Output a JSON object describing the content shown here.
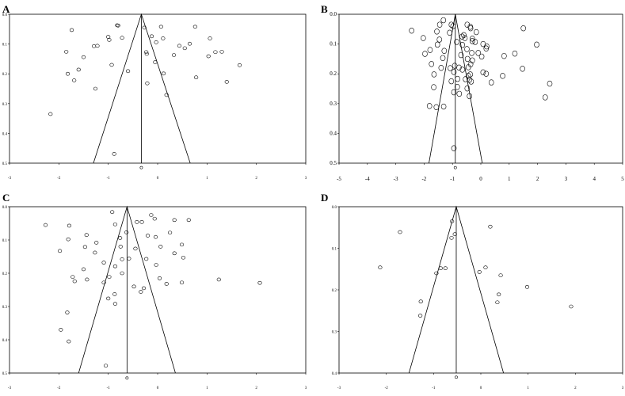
{
  "chart_data": [
    {
      "type": "scatter",
      "panel": "A",
      "xlim": [
        -3,
        3
      ],
      "ylim": [
        0,
        0.5
      ],
      "x_ticks": [
        -3,
        -2,
        -1,
        0,
        1,
        2,
        3
      ],
      "x_tick_labels": [
        "-3",
        "-2",
        "-1",
        "0",
        "1",
        "2",
        "3"
      ],
      "y_ticks": [
        0,
        0.1,
        0.2,
        0.3,
        0.4,
        0.5
      ],
      "y_tick_labels": [
        "0.0",
        "0.1",
        "0.2",
        "0.3",
        "0.4",
        "0.5"
      ],
      "summary_x": -0.33,
      "funnel": {
        "apex": [
          -0.33,
          0
        ],
        "left": [
          -1.3,
          0.5
        ],
        "right": [
          0.66,
          0.5
        ]
      },
      "pooled_marker": {
        "x": -0.33,
        "y": 0.515
      },
      "points": [
        [
          -0.82,
          0.037
        ],
        [
          -0.8,
          0.038
        ],
        [
          -0.27,
          0.045
        ],
        [
          0.07,
          0.042
        ],
        [
          0.76,
          0.042
        ],
        [
          -1.74,
          0.053
        ],
        [
          -1.0,
          0.076
        ],
        [
          -0.98,
          0.086
        ],
        [
          -0.72,
          0.079
        ],
        [
          0.11,
          0.081
        ],
        [
          1.06,
          0.081
        ],
        [
          -0.12,
          0.074
        ],
        [
          -1.29,
          0.107
        ],
        [
          -1.22,
          0.106
        ],
        [
          -0.03,
          0.094
        ],
        [
          0.44,
          0.106
        ],
        [
          0.55,
          0.114
        ],
        [
          0.65,
          0.099
        ],
        [
          -1.85,
          0.126
        ],
        [
          -1.5,
          0.144
        ],
        [
          -0.23,
          0.127
        ],
        [
          -0.22,
          0.133
        ],
        [
          0.33,
          0.137
        ],
        [
          1.03,
          0.141
        ],
        [
          1.17,
          0.127
        ],
        [
          1.3,
          0.126
        ],
        [
          1.66,
          0.171
        ],
        [
          -1.82,
          0.2
        ],
        [
          -1.6,
          0.186
        ],
        [
          -1.69,
          0.222
        ],
        [
          -0.93,
          0.17
        ],
        [
          -0.05,
          0.161
        ],
        [
          -0.6,
          0.191
        ],
        [
          0.12,
          0.199
        ],
        [
          0.78,
          0.212
        ],
        [
          1.4,
          0.227
        ],
        [
          -0.21,
          0.232
        ],
        [
          -1.26,
          0.25
        ],
        [
          0.18,
          0.271
        ],
        [
          -2.17,
          0.335
        ],
        [
          -0.88,
          0.469
        ]
      ]
    },
    {
      "type": "scatter",
      "panel": "B",
      "xlim": [
        -5,
        5
      ],
      "ylim": [
        0,
        0.5
      ],
      "x_ticks": [
        -5,
        -4,
        -3,
        -2,
        -1,
        0,
        1,
        2,
        3,
        4,
        5
      ],
      "x_tick_labels": [
        "-5",
        "-4",
        "-3",
        "-2",
        "-1",
        "0",
        "1",
        "2",
        "3",
        "4",
        "5"
      ],
      "y_ticks": [
        0,
        0.1,
        0.2,
        0.3,
        0.4,
        0.5
      ],
      "y_tick_labels": [
        "0.0",
        "0.1",
        "0.2",
        "0.3",
        "0.4",
        "0.5"
      ],
      "summary_x": -0.9,
      "funnel": {
        "apex": [
          -0.9,
          0
        ],
        "left": [
          -1.83,
          0.5
        ],
        "right": [
          0.05,
          0.5
        ]
      },
      "pooled_marker": {
        "x": -0.9,
        "y": 0.515
      },
      "points": [
        [
          -1.32,
          0.02
        ],
        [
          -1.45,
          0.035
        ],
        [
          -1.04,
          0.035
        ],
        [
          -0.98,
          0.04
        ],
        [
          -0.48,
          0.035
        ],
        [
          -0.37,
          0.042
        ],
        [
          -0.36,
          0.047
        ],
        [
          -2.44,
          0.055
        ],
        [
          -1.55,
          0.058
        ],
        [
          -1.1,
          0.062
        ],
        [
          -0.6,
          0.07
        ],
        [
          -0.16,
          0.06
        ],
        [
          -0.66,
          0.075
        ],
        [
          -0.56,
          0.08
        ],
        [
          -0.3,
          0.082
        ],
        [
          -0.3,
          0.09
        ],
        [
          1.5,
          0.047
        ],
        [
          -2.03,
          0.08
        ],
        [
          -1.46,
          0.085
        ],
        [
          -0.85,
          0.093
        ],
        [
          -0.2,
          0.093
        ],
        [
          -1.53,
          0.102
        ],
        [
          -0.65,
          0.103
        ],
        [
          0.08,
          0.1
        ],
        [
          0.21,
          0.108
        ],
        [
          -0.49,
          0.117
        ],
        [
          0.19,
          0.115
        ],
        [
          1.97,
          0.102
        ],
        [
          -1.79,
          0.12
        ],
        [
          -1.29,
          0.123
        ],
        [
          -0.32,
          0.13
        ],
        [
          -0.09,
          0.13
        ],
        [
          -1.97,
          0.133
        ],
        [
          -0.7,
          0.137
        ],
        [
          -1.34,
          0.147
        ],
        [
          -0.47,
          0.15
        ],
        [
          0.03,
          0.142
        ],
        [
          1.2,
          0.132
        ],
        [
          0.82,
          0.14
        ],
        [
          -0.3,
          0.155
        ],
        [
          -0.36,
          0.168
        ],
        [
          -1.74,
          0.167
        ],
        [
          -0.92,
          0.173
        ],
        [
          -0.77,
          0.179
        ],
        [
          -1.08,
          0.181
        ],
        [
          -1.4,
          0.18
        ],
        [
          -0.44,
          0.178
        ],
        [
          -0.65,
          0.186
        ],
        [
          -1.65,
          0.202
        ],
        [
          -0.95,
          0.194
        ],
        [
          -0.37,
          0.202
        ],
        [
          -0.44,
          0.207
        ],
        [
          0.08,
          0.195
        ],
        [
          0.19,
          0.2
        ],
        [
          0.77,
          0.207
        ],
        [
          1.47,
          0.183
        ],
        [
          -0.82,
          0.217
        ],
        [
          -1.04,
          0.225
        ],
        [
          -0.54,
          0.218
        ],
        [
          -0.4,
          0.22
        ],
        [
          -0.34,
          0.226
        ],
        [
          0.37,
          0.229
        ],
        [
          2.43,
          0.233
        ],
        [
          -0.83,
          0.244
        ],
        [
          -0.48,
          0.249
        ],
        [
          -1.66,
          0.245
        ],
        [
          -0.95,
          0.262
        ],
        [
          -0.4,
          0.275
        ],
        [
          -0.76,
          0.267
        ],
        [
          2.27,
          0.279
        ],
        [
          -1.81,
          0.308
        ],
        [
          -1.57,
          0.312
        ],
        [
          -1.31,
          0.31
        ],
        [
          -0.95,
          0.45
        ]
      ]
    },
    {
      "type": "scatter",
      "panel": "C",
      "xlim": [
        -3,
        3
      ],
      "ylim": [
        0,
        0.5
      ],
      "x_ticks": [
        -3,
        -2,
        -1,
        0,
        1,
        2,
        3
      ],
      "x_tick_labels": [
        "-3",
        "-2",
        "-1",
        "0",
        "1",
        "2",
        "3"
      ],
      "y_ticks": [
        0,
        0.1,
        0.2,
        0.3,
        0.4,
        0.5
      ],
      "y_tick_labels": [
        "0.0",
        "0.1",
        "0.2",
        "0.3",
        "0.4",
        "0.5"
      ],
      "summary_x": -0.62,
      "funnel": {
        "apex": [
          -0.62,
          0
        ],
        "left": [
          -1.6,
          0.5
        ],
        "right": [
          0.36,
          0.5
        ]
      },
      "pooled_marker": {
        "x": -0.62,
        "y": 0.515
      },
      "points": [
        [
          -0.92,
          0.016
        ],
        [
          -0.13,
          0.025
        ],
        [
          0.63,
          0.04
        ],
        [
          0.34,
          0.04
        ],
        [
          -0.06,
          0.036
        ],
        [
          -2.27,
          0.055
        ],
        [
          -1.79,
          0.057
        ],
        [
          -0.86,
          0.053
        ],
        [
          -0.42,
          0.046
        ],
        [
          -0.32,
          0.046
        ],
        [
          -1.44,
          0.085
        ],
        [
          -0.63,
          0.077
        ],
        [
          0.25,
          0.078
        ],
        [
          -0.2,
          0.087
        ],
        [
          -0.04,
          0.091
        ],
        [
          -0.76,
          0.094
        ],
        [
          -1.81,
          0.098
        ],
        [
          -1.24,
          0.108
        ],
        [
          0.49,
          0.114
        ],
        [
          -1.47,
          0.121
        ],
        [
          -0.75,
          0.12
        ],
        [
          -1.27,
          0.138
        ],
        [
          -0.45,
          0.126
        ],
        [
          -1.98,
          0.133
        ],
        [
          0.06,
          0.12
        ],
        [
          -0.58,
          0.156
        ],
        [
          -0.72,
          0.158
        ],
        [
          -0.23,
          0.157
        ],
        [
          0.34,
          0.14
        ],
        [
          -1.09,
          0.168
        ],
        [
          -0.86,
          0.179
        ],
        [
          -0.03,
          0.175
        ],
        [
          0.52,
          0.153
        ],
        [
          -1.5,
          0.188
        ],
        [
          -1.72,
          0.211
        ],
        [
          -1.43,
          0.219
        ],
        [
          -1.68,
          0.224
        ],
        [
          -0.98,
          0.211
        ],
        [
          -1.09,
          0.228
        ],
        [
          -0.72,
          0.2
        ],
        [
          0.04,
          0.215
        ],
        [
          0.18,
          0.232
        ],
        [
          0.49,
          0.228
        ],
        [
          -0.48,
          0.24
        ],
        [
          1.24,
          0.219
        ],
        [
          2.07,
          0.229
        ],
        [
          -0.28,
          0.245
        ],
        [
          -0.34,
          0.256
        ],
        [
          -0.87,
          0.263
        ],
        [
          -1.0,
          0.276
        ],
        [
          -0.86,
          0.292
        ],
        [
          -1.83,
          0.318
        ],
        [
          -1.96,
          0.37
        ],
        [
          -1.8,
          0.405
        ],
        [
          -1.05,
          0.478
        ]
      ]
    },
    {
      "type": "scatter",
      "panel": "D",
      "xlim": [
        -3,
        3
      ],
      "ylim": [
        0,
        0.4
      ],
      "x_ticks": [
        -3,
        -2,
        -1,
        0,
        1,
        2,
        3
      ],
      "x_tick_labels": [
        "-3",
        "-2",
        "-1",
        "0",
        "1",
        "2",
        "3"
      ],
      "y_ticks": [
        0,
        0.1,
        0.2,
        0.3,
        0.4
      ],
      "y_tick_labels": [
        "0.0",
        "0.1",
        "0.2",
        "0.3",
        "0.4"
      ],
      "summary_x": -0.52,
      "funnel": {
        "apex": [
          -0.52,
          0
        ],
        "left": [
          -1.52,
          0.4
        ],
        "right": [
          0.48,
          0.4
        ]
      },
      "pooled_marker": {
        "x": -0.52,
        "y": 0.41
      },
      "points": [
        [
          -0.61,
          0.035
        ],
        [
          -0.55,
          0.066
        ],
        [
          -0.62,
          0.075
        ],
        [
          0.2,
          0.048
        ],
        [
          -1.71,
          0.061
        ],
        [
          0.1,
          0.146
        ],
        [
          -0.03,
          0.157
        ],
        [
          -0.75,
          0.148
        ],
        [
          -0.85,
          0.148
        ],
        [
          -0.94,
          0.16
        ],
        [
          0.42,
          0.165
        ],
        [
          -2.13,
          0.146
        ],
        [
          0.98,
          0.193
        ],
        [
          -1.27,
          0.228
        ],
        [
          1.91,
          0.24
        ],
        [
          -1.28,
          0.262
        ],
        [
          0.38,
          0.211
        ],
        [
          0.35,
          0.23
        ]
      ]
    }
  ]
}
